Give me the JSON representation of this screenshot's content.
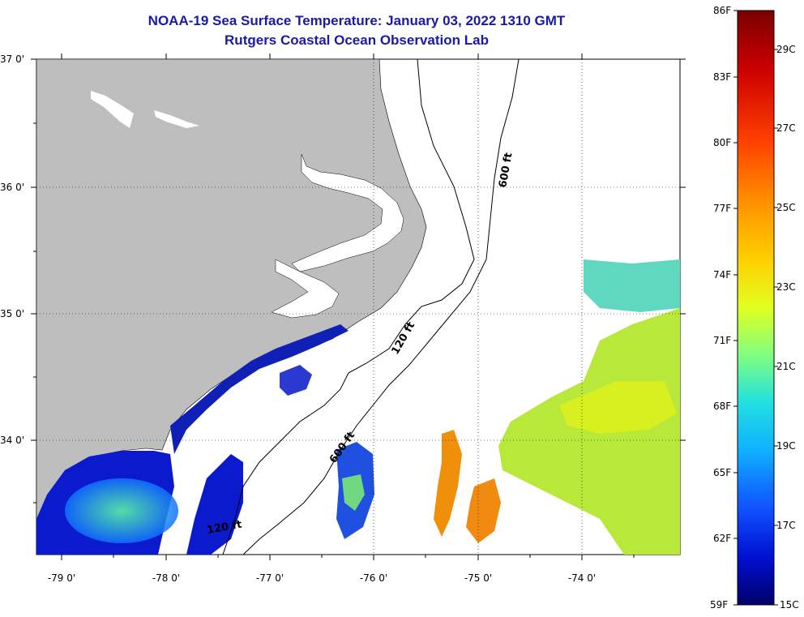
{
  "title": "NOAA-19 Sea Surface Temperature:  January 03, 2022 1310 GMT",
  "subtitle": "Rutgers Coastal Ocean Observation Lab",
  "map": {
    "lat_labels": [
      "37 0'",
      "36 0'",
      "35 0'",
      "34 0'"
    ],
    "lon_labels": [
      "-79 0'",
      "-78 0'",
      "-77 0'",
      "-76 0'",
      "-75 0'",
      "-74 0'"
    ],
    "contours": [
      "600 ft",
      "120 ft",
      "600 ft",
      "120 ft"
    ],
    "land_color": "#bebebe",
    "cloud_color": "#ffffff"
  },
  "colorbar": {
    "f_labels": [
      "86F",
      "83F",
      "80F",
      "77F",
      "74F",
      "71F",
      "68F",
      "65F",
      "62F",
      "59F"
    ],
    "c_labels": [
      "29C",
      "27C",
      "25C",
      "23C",
      "21C",
      "19C",
      "17C",
      "15C"
    ],
    "colors": [
      "#7a0000",
      "#ff0000",
      "#ff8c00",
      "#ffff00",
      "#7fff7f",
      "#00ffff",
      "#0080ff",
      "#0000c8",
      "#00007a"
    ]
  }
}
